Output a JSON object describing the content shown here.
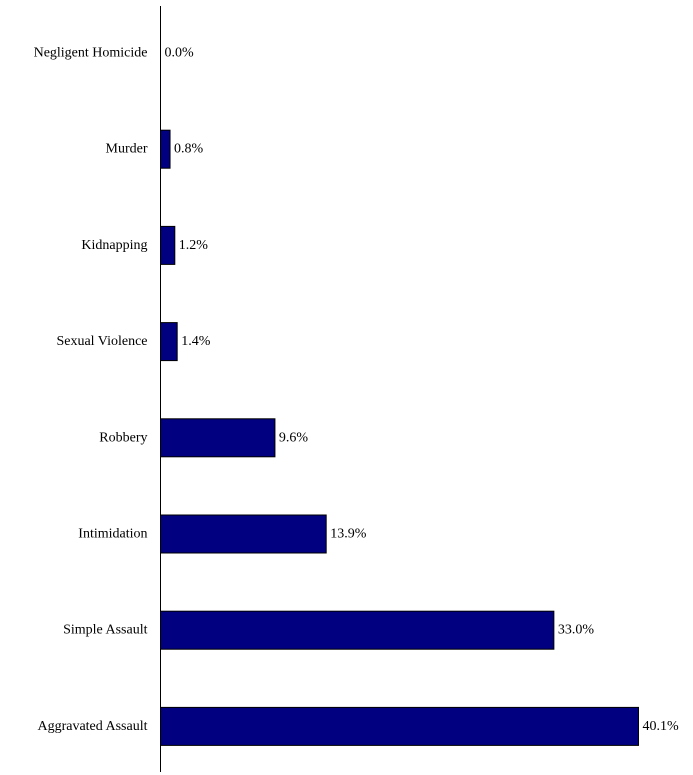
{
  "chart_data": {
    "type": "bar",
    "orientation": "horizontal",
    "categories": [
      "Negligent Homicide",
      "Murder",
      "Kidnapping",
      "Sexual Violence",
      "Robbery",
      "Intimidation",
      "Simple Assault",
      "Aggravated Assault"
    ],
    "values": [
      0.0,
      0.8,
      1.2,
      1.4,
      9.6,
      13.9,
      33.0,
      40.1
    ],
    "value_labels": [
      "0.0%",
      "0.8%",
      "1.2%",
      "1.4%",
      "9.6%",
      "13.9%",
      "33.0%",
      "40.1%"
    ],
    "title": "",
    "xlabel": "",
    "ylabel": "",
    "xlim": [
      0,
      40.1
    ],
    "grid": false,
    "legend": "none",
    "bar_color": "#000080",
    "bar_stroke": "#000000"
  }
}
